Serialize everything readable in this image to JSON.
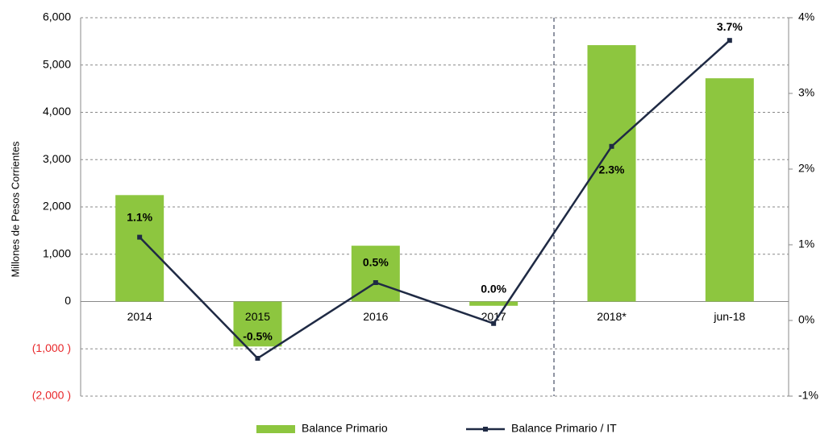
{
  "chart_data": {
    "type": "bar_line",
    "y_axis_label": "Millones de Pesos Corrientes",
    "categories": [
      "2014",
      "2015",
      "2016",
      "2017",
      "2018*",
      "jun-18"
    ],
    "series": [
      {
        "name": "Balance Primario",
        "type": "bar",
        "color": "#8dc63f",
        "values": [
          2250,
          -950,
          1180,
          -90,
          5420,
          4720
        ]
      },
      {
        "name": "Balance Primario / IT",
        "type": "line",
        "axis": "y2",
        "color": "#1f2a44",
        "values": [
          1.1,
          -0.5,
          0.5,
          -0.04,
          2.3,
          3.7
        ],
        "value_labels": [
          "1.1%",
          "-0.5%",
          "0.5%",
          "0.0%",
          "2.3%",
          "3.7%"
        ]
      }
    ],
    "ylim": [
      -2000,
      6000
    ],
    "yticks": [
      {
        "value": -2000,
        "label": "(2,000 )"
      },
      {
        "value": -1000,
        "label": "(1,000 )"
      },
      0,
      {
        "value": 1000,
        "label": "1,000"
      },
      {
        "value": 2000,
        "label": "2,000"
      },
      {
        "value": 3000,
        "label": "3,000"
      },
      {
        "value": 4000,
        "label": "4,000"
      },
      {
        "value": 5000,
        "label": "5,000"
      },
      {
        "value": 6000,
        "label": "6,000"
      }
    ],
    "negative_tick_color": "#e8272a",
    "y2lim": [
      -1,
      4
    ],
    "y2ticks": [
      {
        "value": -1,
        "label": "-1%"
      },
      {
        "value": 0,
        "label": "0%"
      },
      {
        "value": 1,
        "label": "1%"
      },
      {
        "value": 2,
        "label": "2%"
      },
      {
        "value": 3,
        "label": "3%"
      },
      {
        "value": 4,
        "label": "4%"
      }
    ],
    "grid": true,
    "legend": "bottom"
  }
}
